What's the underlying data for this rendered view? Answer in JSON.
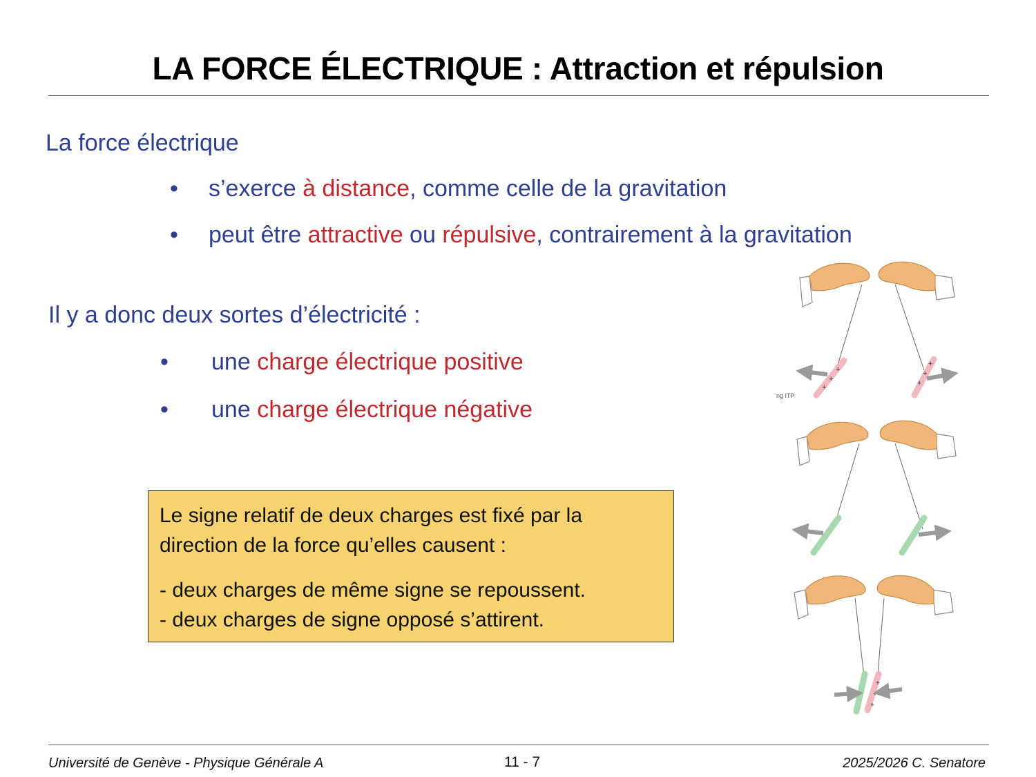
{
  "title": "LA FORCE ÉLECTRIQUE : Attraction et répulsion",
  "section1": {
    "heading": "La force électrique",
    "bullets": [
      {
        "marker": "•",
        "parts": [
          "s’exerce ",
          "à distance",
          ", comme celle de la gravitation"
        ]
      },
      {
        "marker": "•",
        "parts": [
          "peut être ",
          "attractive",
          " ou ",
          "répulsive",
          ", contrairement à la gravitation"
        ]
      }
    ]
  },
  "section2": {
    "heading": "Il y a donc deux sortes d’électricité :",
    "bullets": [
      {
        "marker": "•",
        "parts": [
          "une ",
          "charge électrique positive"
        ]
      },
      {
        "marker": "•",
        "parts": [
          "une ",
          "charge électrique négative"
        ]
      }
    ]
  },
  "note": {
    "line1": "Le signe relatif de deux charges est fixé par la",
    "line2": "direction de la force qu’elles causent :",
    "line3": "- deux charges de même signe se repoussent.",
    "line4": "- deux charges de signe opposé s’attirent."
  },
  "illustration": {
    "caption_fragment": "ng ITP",
    "plus_sign": "+",
    "colors": {
      "positive_rod": "#f2b8c0",
      "negative_rod": "#a8d8b0",
      "hand": "#f0b878",
      "arrow": "#9a9a9a"
    }
  },
  "footer": {
    "left": "Université de Genève - Physique Générale A",
    "center": "11 - 7",
    "right": "2025/2026  C. Senatore"
  },
  "colors": {
    "blue_text": "#2e3f8f",
    "red_text": "#c0282d",
    "note_bg": "#f7d36f"
  }
}
